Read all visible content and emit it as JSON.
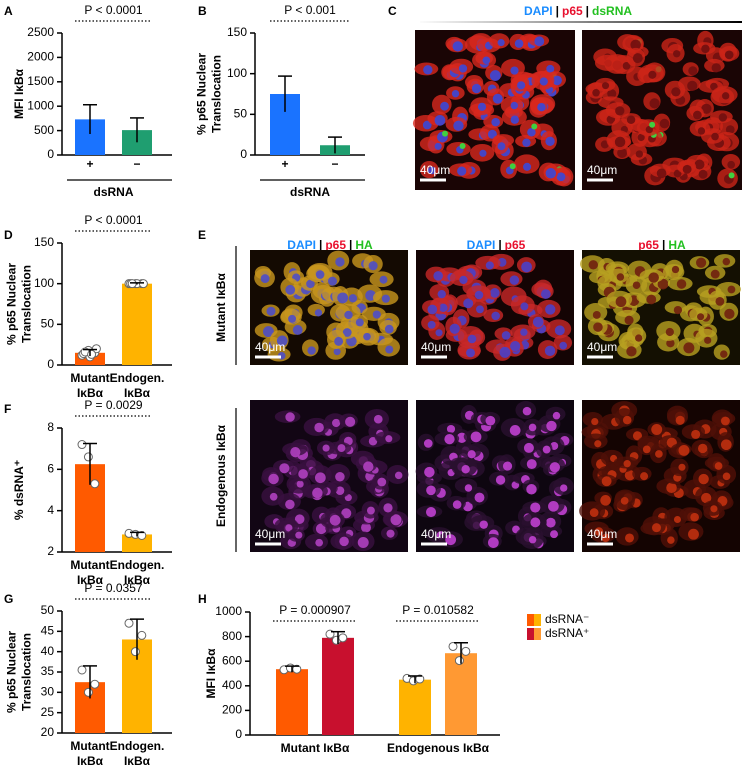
{
  "chart_data": [
    {
      "type": "bar",
      "label": "A",
      "ylabel": "MFI IκBα",
      "xlabel": "dsRNA",
      "categories": [
        "+",
        "−"
      ],
      "values": [
        730,
        510
      ],
      "errors": [
        300,
        250
      ],
      "colors": [
        "#1a73ff",
        "#1f9e70"
      ],
      "ylim": [
        0,
        2500
      ],
      "yticks": [
        0,
        500,
        1000,
        1500,
        2000,
        2500
      ],
      "annotations": [
        "P < 0.0001"
      ]
    },
    {
      "type": "bar",
      "label": "B",
      "ylabel": "% p65 Nuclear Translocation",
      "xlabel": "dsRNA",
      "categories": [
        "+",
        "−"
      ],
      "values": [
        75,
        12
      ],
      "errors": [
        22,
        10
      ],
      "colors": [
        "#1a73ff",
        "#1f9e70"
      ],
      "ylim": [
        0,
        150
      ],
      "yticks": [
        0,
        50,
        100,
        150
      ],
      "annotations": [
        "P < 0.001"
      ]
    },
    {
      "type": "image",
      "label": "C",
      "headers": [
        [
          "DAPI",
          "|",
          "p65",
          "|",
          "dsRNA"
        ]
      ],
      "header_colors": [
        [
          "#1a8cff",
          "#000000",
          "#e8102e",
          "#000000",
          "#22c020"
        ]
      ],
      "scale_bar": "40μm"
    },
    {
      "type": "bar",
      "label": "D",
      "ylabel": "% p65 Nuclear Translocation",
      "categories": [
        "Mutant IκBα",
        "Endogen. IκBα"
      ],
      "values": [
        15,
        100
      ],
      "errors": [
        4,
        1
      ],
      "colors": [
        "#ff5a00",
        "#ffb300"
      ],
      "points": [
        [
          12,
          18,
          15,
          14,
          10,
          20,
          16,
          13
        ],
        [
          100,
          100,
          100,
          100,
          100,
          100,
          100
        ]
      ],
      "ylim": [
        0,
        150
      ],
      "yticks": [
        0,
        50,
        100,
        150
      ],
      "annotations": [
        "P < 0.0001"
      ]
    },
    {
      "type": "image",
      "label": "E",
      "headers": [
        [
          "DAPI",
          "|",
          "p65",
          "|",
          "HA"
        ],
        [
          "DAPI",
          "|",
          "p65"
        ],
        [
          "p65",
          "|",
          "HA"
        ]
      ],
      "header_colors": [
        [
          "#1a8cff",
          "#000000",
          "#e8102e",
          "#000000",
          "#22c020"
        ],
        [
          "#1a8cff",
          "#000000",
          "#e8102e"
        ],
        [
          "#e8102e",
          "#000000",
          "#22c020"
        ]
      ],
      "row_labels": [
        "Mutant IκBα",
        "Endogenous IκBα"
      ],
      "scale_bar": "40μm"
    },
    {
      "type": "bar",
      "label": "F",
      "ylabel": "% dsRNA⁺",
      "categories": [
        "Mutant IκBα",
        "Endogen. IκBα"
      ],
      "values": [
        6.25,
        2.85
      ],
      "errors": [
        1.0,
        0.1
      ],
      "colors": [
        "#ff5a00",
        "#ffb300"
      ],
      "points": [
        [
          7.2,
          6.6,
          5.3
        ],
        [
          2.9,
          2.85,
          2.8
        ]
      ],
      "ylim": [
        2,
        8
      ],
      "yticks": [
        2,
        4,
        6,
        8
      ],
      "annotations": [
        "P = 0.0029"
      ]
    },
    {
      "type": "bar",
      "label": "G",
      "ylabel": "% p65 Nuclear Translocation",
      "categories": [
        "Mutant IκBα",
        "Endogen. IκBα"
      ],
      "values": [
        32.5,
        43
      ],
      "errors": [
        4,
        5
      ],
      "colors": [
        "#ff5a00",
        "#ffb300"
      ],
      "points": [
        [
          35.5,
          30,
          32
        ],
        [
          47,
          40,
          44
        ]
      ],
      "ylim": [
        20,
        50
      ],
      "yticks": [
        20,
        25,
        30,
        35,
        40,
        45,
        50
      ],
      "annotations": [
        "P = 0.0357"
      ]
    },
    {
      "type": "grouped_bar",
      "label": "H",
      "ylabel": "MFI IκBα",
      "categories": [
        "Mutant IκBα",
        "Endogenous IκBα"
      ],
      "series": [
        {
          "name": "dsRNA⁻",
          "colors": [
            "#ff5a00",
            "#ffb300"
          ],
          "values": [
            535,
            450
          ],
          "errors": [
            25,
            30
          ],
          "points": [
            [
              530,
              545,
              535
            ],
            [
              460,
              440,
              455
            ]
          ]
        },
        {
          "name": "dsRNA⁺",
          "colors": [
            "#c8102e",
            "#ff9933"
          ],
          "values": [
            790,
            665
          ],
          "errors": [
            50,
            85
          ],
          "points": [
            [
              820,
              770,
              790
            ],
            [
              720,
              605,
              680
            ]
          ]
        }
      ],
      "ylim": [
        0,
        1000
      ],
      "yticks": [
        0,
        200,
        400,
        600,
        800,
        1000
      ],
      "annotations": [
        "P = 0.000907",
        "P = 0.010582"
      ]
    }
  ]
}
